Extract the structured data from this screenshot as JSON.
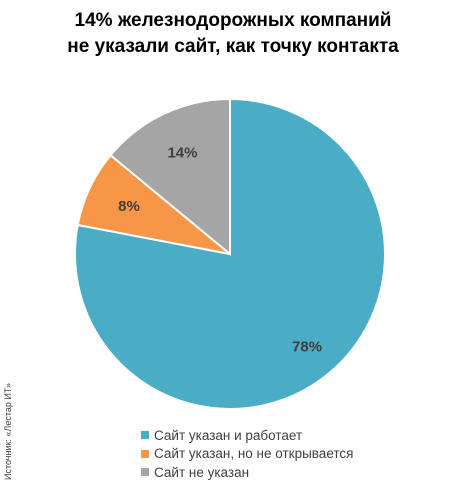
{
  "title_lines": [
    "14% железнодорожных компаний",
    "не указали сайт, как точку контакта"
  ],
  "source": "Источник: «Лестар ИТ»",
  "chart_data": {
    "type": "pie",
    "title": "14% железнодорожных компаний не указали сайт, как точку контакта",
    "slices": [
      {
        "label": "Сайт указан и работает",
        "value": 78,
        "data_label": "78%",
        "color": "#4BACC6"
      },
      {
        "label": "Сайт указан, но не открывается",
        "value": 8,
        "data_label": "8%",
        "color": "#F79646"
      },
      {
        "label": "Сайт не указан",
        "value": 14,
        "data_label": "14%",
        "color": "#A5A5A5"
      }
    ],
    "legend_position": "bottom"
  }
}
